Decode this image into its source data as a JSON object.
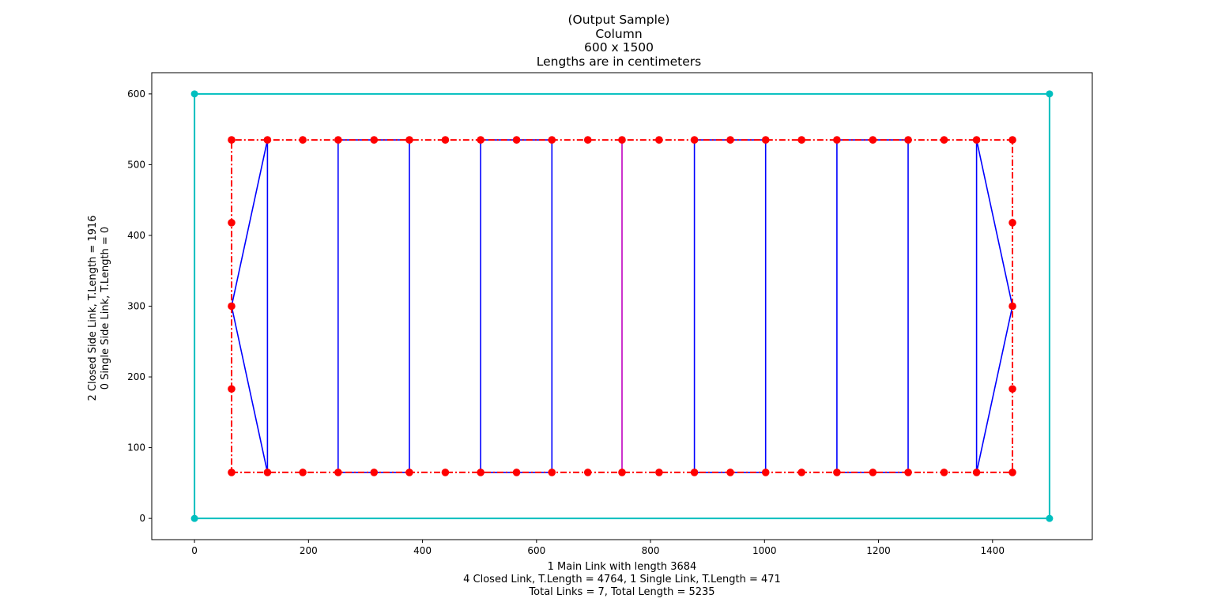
{
  "chart_data": {
    "type": "line",
    "title": [
      "(Output Sample)",
      "Column",
      "600 x 1500",
      "Lengths are in centimeters"
    ],
    "xlabel": [
      "1 Main Link with length 3684",
      "4 Closed Link, T.Length = 4764, 1 Single Link, T.Length = 471",
      "Total Links = 7, Total Length = 5235"
    ],
    "ylabel": [
      "2 Closed Side Link, T.Length = 1916",
      "0 Single Side Link, T.Length = 0"
    ],
    "xlim": [
      -75,
      1575
    ],
    "ylim": [
      -30,
      630
    ],
    "xticks": [
      0,
      200,
      400,
      600,
      800,
      1000,
      1200,
      1400
    ],
    "yticks": [
      0,
      100,
      200,
      300,
      400,
      500,
      600
    ],
    "grid": false,
    "colors": {
      "section": "#00bfbf",
      "main": "#ff0000",
      "closed": "#0000ff",
      "single": "#bf00bf",
      "marker": "#ff0000"
    },
    "series": [
      {
        "kind": "section",
        "x": [
          0,
          1500,
          1500,
          0,
          0
        ],
        "y": [
          0,
          0,
          600,
          600,
          0
        ]
      },
      {
        "kind": "main",
        "x": [
          65,
          1435,
          1435,
          65,
          65
        ],
        "y": [
          65,
          65,
          535,
          535,
          65
        ]
      },
      {
        "kind": "closed",
        "x": [
          128,
          128,
          65,
          128
        ],
        "y": [
          65,
          535,
          300,
          65
        ]
      },
      {
        "kind": "closed",
        "x": [
          252,
          252,
          377,
          377,
          252
        ],
        "y": [
          65,
          535,
          535,
          65,
          65
        ]
      },
      {
        "kind": "closed",
        "x": [
          502,
          502,
          627,
          627,
          502
        ],
        "y": [
          65,
          535,
          535,
          65,
          65
        ]
      },
      {
        "kind": "single",
        "x": [
          750,
          750
        ],
        "y": [
          65,
          535
        ]
      },
      {
        "kind": "closed",
        "x": [
          877,
          877,
          1002,
          1002,
          877
        ],
        "y": [
          65,
          535,
          535,
          65,
          65
        ]
      },
      {
        "kind": "closed",
        "x": [
          1127,
          1127,
          1252,
          1252,
          1127
        ],
        "y": [
          65,
          535,
          535,
          65,
          65
        ]
      },
      {
        "kind": "closed",
        "x": [
          1372,
          1372,
          1435,
          1372
        ],
        "y": [
          65,
          535,
          300,
          65
        ]
      }
    ],
    "section_points": {
      "x": [
        0,
        1500,
        1500,
        0
      ],
      "y": [
        0,
        0,
        600,
        600
      ]
    },
    "bar_points": {
      "x": [
        65,
        128,
        190,
        252,
        315,
        377,
        440,
        502,
        565,
        627,
        690,
        750,
        815,
        877,
        940,
        1002,
        1065,
        1127,
        1190,
        1252,
        1315,
        1372,
        1435,
        65,
        128,
        190,
        252,
        315,
        377,
        440,
        502,
        565,
        627,
        690,
        750,
        815,
        877,
        940,
        1002,
        1065,
        1127,
        1190,
        1252,
        1315,
        1372,
        1435,
        65,
        65,
        65,
        1435,
        1435,
        1435
      ],
      "y": [
        65,
        65,
        65,
        65,
        65,
        65,
        65,
        65,
        65,
        65,
        65,
        65,
        65,
        65,
        65,
        65,
        65,
        65,
        65,
        65,
        65,
        65,
        65,
        535,
        535,
        535,
        535,
        535,
        535,
        535,
        535,
        535,
        535,
        535,
        535,
        535,
        535,
        535,
        535,
        535,
        535,
        535,
        535,
        535,
        535,
        535,
        183,
        300,
        418,
        183,
        300,
        418
      ]
    }
  }
}
